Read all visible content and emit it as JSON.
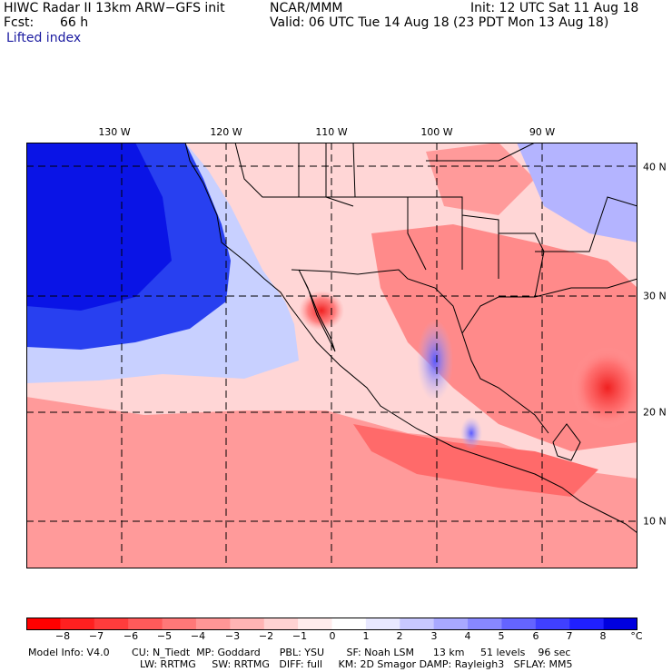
{
  "header": {
    "line1_left": "HIWC Radar II 13km ARW−GFS init",
    "line1_mid": "NCAR/MMM",
    "line1_right": "Init: 12 UTC Sat 11 Aug 18",
    "fcst_label": "Fcst:",
    "fcst_value": "66 h",
    "valid": "Valid: 06 UTC Tue 14 Aug 18 (23 PDT Mon 13 Aug 18)",
    "field": "Lifted index"
  },
  "map": {
    "lon_labels": [
      "130 W",
      "120 W",
      "110 W",
      "100 W",
      "90 W"
    ],
    "lat_labels": [
      "40 N",
      "30 N",
      "20 N",
      "10 N"
    ]
  },
  "colorbar": {
    "unit": "°C",
    "ticks": [
      "−8",
      "−7",
      "−6",
      "−5",
      "−4",
      "−3",
      "−2",
      "−1",
      "0",
      "1",
      "2",
      "3",
      "4",
      "5",
      "6",
      "7",
      "8"
    ],
    "colors": [
      "#ff0000",
      "#ff2020",
      "#ff3c3c",
      "#ff5a5a",
      "#ff7878",
      "#ff9696",
      "#ffb4b4",
      "#ffd2d2",
      "#ffecec",
      "#ffffff",
      "#e8e8ff",
      "#c8c8ff",
      "#a8a8ff",
      "#8888ff",
      "#6464ff",
      "#4040ff",
      "#2020ff",
      "#0000e0"
    ]
  },
  "footer": {
    "line1": "Model Info: V4.0       CU: N_Tiedt  MP: Goddard      PBL: YSU       SF: Noah LSM      13 km     51 levels    96 sec",
    "line2": "LW: RRTMG     SW: RRTMG   DIFF: full     KM: 2D Smagor DAMP: Rayleigh3   SFLAY: MM5"
  }
}
